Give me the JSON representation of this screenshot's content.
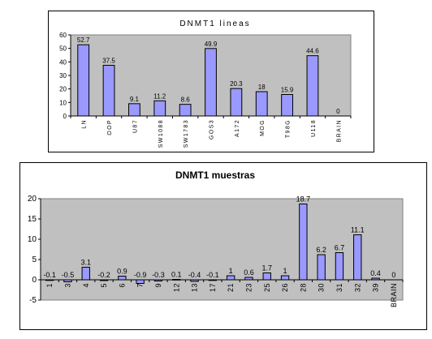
{
  "chart_data": [
    {
      "type": "bar",
      "title": "DNMT1 lineas",
      "categories": [
        "LN",
        "OOP",
        "U87",
        "SW1088",
        "SW1783",
        "GOS3",
        "A172",
        "MOG",
        "T98G",
        "U118",
        "BRAIN"
      ],
      "values": [
        52.7,
        37.5,
        9.1,
        11.2,
        8.6,
        49.9,
        20.3,
        18,
        15.9,
        44.6,
        0
      ],
      "value_labels": [
        "52.7",
        "37.5",
        "9.1",
        "11.2",
        "8.6",
        "49.9",
        "20.3",
        "18",
        "15.9",
        "44.6",
        "0"
      ],
      "ylim": [
        0,
        60
      ],
      "yticks": [
        "0",
        "10",
        "20",
        "30",
        "40",
        "50",
        "60"
      ],
      "grid": false,
      "colors": {
        "bar": "#9999ff",
        "plot_bg": "#c0c0c0",
        "border": "#000000"
      }
    },
    {
      "type": "bar",
      "title": "DNMT1 muestras",
      "categories": [
        "1",
        "3",
        "4",
        "5",
        "6",
        "7",
        "9",
        "12",
        "13",
        "17",
        "21",
        "23",
        "25",
        "26",
        "28",
        "30",
        "31",
        "32",
        "39",
        "BRAIN"
      ],
      "values": [
        -0.1,
        -0.5,
        3.1,
        -0.2,
        0.9,
        -0.9,
        -0.3,
        0.1,
        -0.4,
        -0.1,
        1,
        0.6,
        1.7,
        1,
        18.7,
        6.2,
        6.7,
        11.1,
        0.4,
        0
      ],
      "value_labels": [
        "-0.1",
        "-0.5",
        "3.1",
        "-0.2",
        "0.9",
        "-0.9",
        "-0.3",
        "0.1",
        "-0.4",
        "-0.1",
        "1",
        "0.6",
        "1.7",
        "1",
        "18.7",
        "6.2",
        "6.7",
        "11.1",
        "0.4",
        "0"
      ],
      "ylim": [
        -5,
        20
      ],
      "yticks": [
        "-5",
        "0",
        "5",
        "10",
        "15",
        "20"
      ],
      "grid": false,
      "colors": {
        "bar": "#9999ff",
        "plot_bg": "#c0c0c0",
        "border": "#000000"
      }
    }
  ]
}
